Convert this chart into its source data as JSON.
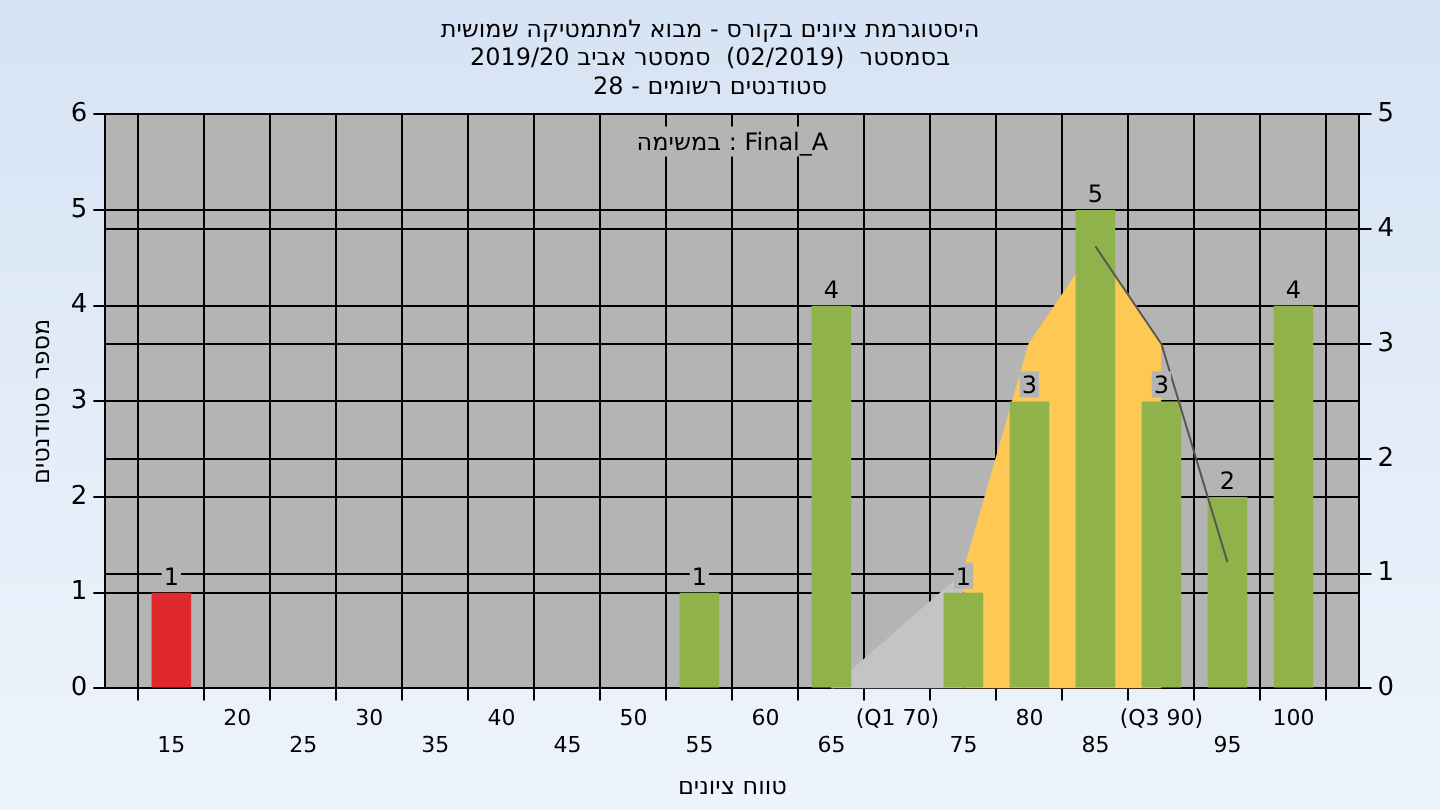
{
  "chart_data": {
    "type": "bar",
    "title": "היסטוגרמת ציונים בקורס - מבוא למתמטיקה שמושית",
    "subtitle": "בסמסטר  (02/2019)  סמסטר אביב 2019/20\nסטודנטים רשומים - 28",
    "xlabel": "טווח ציונים",
    "ylabel": "מספר סטודנטים",
    "annotations": [
      "במשימה : Final_A"
    ],
    "categories": [
      null,
      "15",
      "20",
      "25",
      "30",
      "35",
      "40",
      "45",
      "50",
      "55",
      "60",
      "65",
      "(Q1 70)",
      "75",
      "80",
      "85",
      "(Q3 90)",
      "95",
      "100",
      null
    ],
    "series": [
      {
        "colors": [
          "#e0292b",
          "#e0292b",
          "#8fb34a",
          "#8fb34a",
          "#8fb34a",
          "#8fb34a",
          "#8fb34a",
          "#8fb34a",
          "#8fb34a",
          "#8fb34a",
          "#8fb34a",
          "#8fb34a",
          "#8fb34a",
          "#8fb34a",
          "#8fb34a",
          "#8fb34a",
          "#8fb34a",
          "#8fb34a",
          "#8fb34a",
          "#8fb34a"
        ],
        "values": [
          null,
          1,
          null,
          null,
          null,
          null,
          null,
          null,
          null,
          1,
          null,
          4,
          null,
          1,
          3,
          5,
          3,
          2,
          4,
          null
        ],
        "value_labels": [
          null,
          "1",
          null,
          null,
          null,
          null,
          null,
          null,
          null,
          "1",
          null,
          "4",
          null,
          "1",
          "3",
          "5",
          "3",
          "2",
          "4",
          null
        ]
      },
      {
        "type": "area",
        "axis": "y2",
        "color": "#c4c4c4",
        "values": [
          null,
          null,
          null,
          null,
          null,
          null,
          null,
          null,
          null,
          null,
          null,
          0,
          0.5,
          1,
          null,
          null,
          null,
          null,
          null,
          null
        ]
      },
      {
        "type": "area",
        "axis": "y2",
        "color": "#fdc854",
        "values": [
          null,
          null,
          null,
          null,
          null,
          null,
          null,
          null,
          null,
          null,
          null,
          null,
          null,
          1,
          3,
          3.85,
          3,
          null,
          null,
          null
        ]
      },
      {
        "type": "line",
        "axis": "y2",
        "color": "#555555",
        "values": [
          null,
          null,
          null,
          null,
          null,
          null,
          null,
          null,
          null,
          null,
          null,
          null,
          null,
          null,
          null,
          3.85,
          3,
          1.1,
          null,
          null
        ]
      }
    ],
    "ylim": [
      0,
      6
    ],
    "yticks": [
      0,
      1,
      2,
      3,
      4,
      5,
      6
    ],
    "y2lim": [
      0,
      5
    ],
    "y2ticks": [
      0,
      1,
      2,
      3,
      4,
      5
    ],
    "grid": true,
    "legend": false,
    "marker": "none"
  }
}
